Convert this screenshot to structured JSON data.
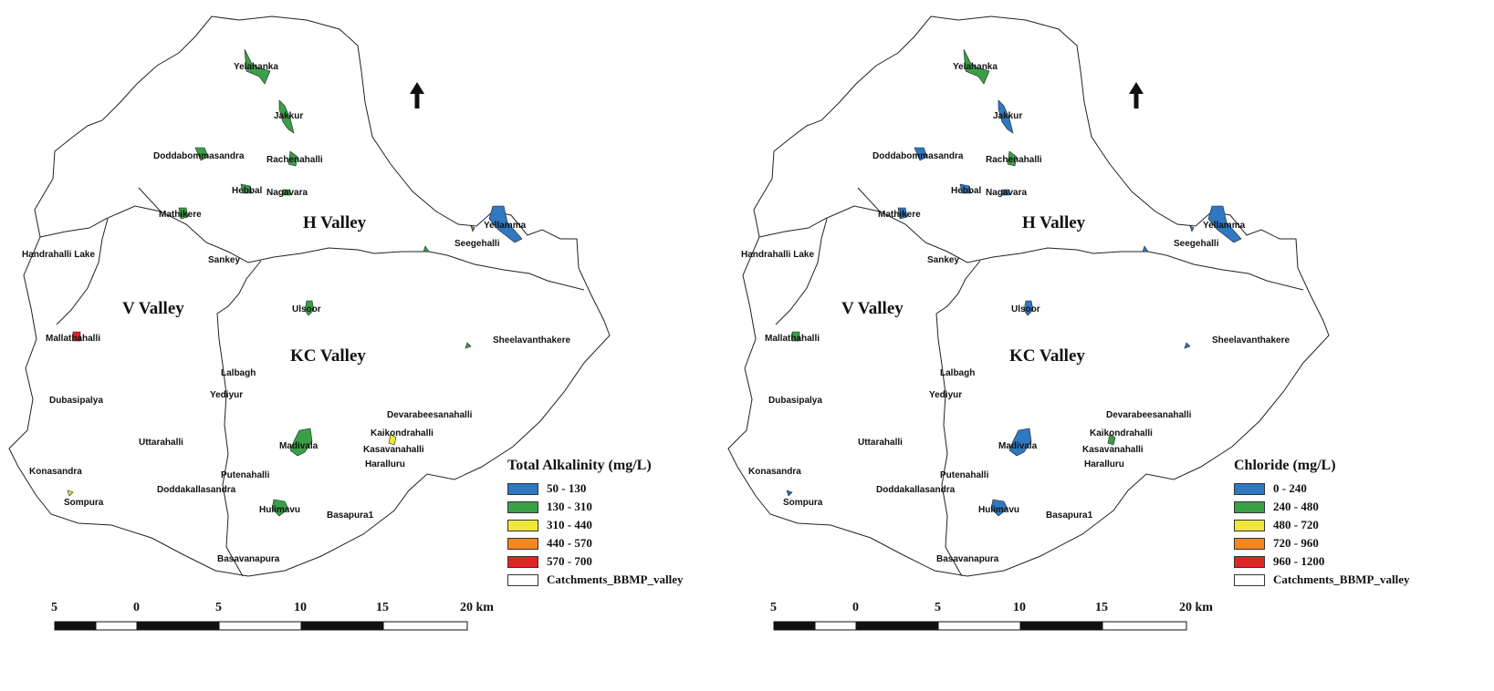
{
  "panels": [
    {
      "legend": {
        "title": "Total Alkalinity (mg/L)",
        "items": [
          {
            "label": "50 - 130",
            "color": "#2f78c2"
          },
          {
            "label": "130 - 310",
            "color": "#3aa047"
          },
          {
            "label": "310 - 440",
            "color": "#efe73a"
          },
          {
            "label": "440 - 570",
            "color": "#f5871f"
          },
          {
            "label": "570 - 700",
            "color": "#e02525"
          },
          {
            "label": "Catchments_BBMP_valley",
            "color": "#ffffff"
          }
        ]
      },
      "lake_classes": {
        "Yelahanka": 1,
        "Jakkur": 1,
        "Doddabommasandra": 1,
        "Rachenahalli": 1,
        "Hebbal": 1,
        "Nagavara": 1,
        "Mathikere": 1,
        "Yellamma": 0,
        "Seegehalli": 1,
        "Ulsoor": 1,
        "Sheelavanthakere": 1,
        "Mallathahalli": 4,
        "Madivala": 1,
        "Kasavanahalli": 2,
        "Hulimavu": 1,
        "Sompura": 2
      }
    },
    {
      "legend": {
        "title": "Chloride (mg/L)",
        "items": [
          {
            "label": "0 - 240",
            "color": "#2f78c2"
          },
          {
            "label": "240 - 480",
            "color": "#3aa047"
          },
          {
            "label": "480 - 720",
            "color": "#efe73a"
          },
          {
            "label": "720 - 960",
            "color": "#f5871f"
          },
          {
            "label": "960 - 1200",
            "color": "#e02525"
          },
          {
            "label": "Catchments_BBMP_valley",
            "color": "#ffffff"
          }
        ]
      },
      "lake_classes": {
        "Yelahanka": 1,
        "Jakkur": 0,
        "Doddabommasandra": 0,
        "Rachenahalli": 1,
        "Hebbal": 0,
        "Nagavara": 0,
        "Mathikere": 0,
        "Yellamma": 0,
        "Seegehalli": 0,
        "Ulsoor": 0,
        "Sheelavanthakere": 0,
        "Mallathahalli": 1,
        "Madivala": 0,
        "Kasavanahalli": 1,
        "Hulimavu": 0,
        "Sompura": 0
      }
    }
  ],
  "valleys": [
    "H Valley",
    "V Valley",
    "KC Valley"
  ],
  "lakes": [
    "Yelahanka",
    "Jakkur",
    "Doddabommasandra",
    "Rachenahalli",
    "Hebbal",
    "Nagavara",
    "Mathikere",
    "Yellamma",
    "Seegehalli",
    "Handrahalli Lake",
    "Sankey",
    "Ulsoor",
    "Sheelavanthakere",
    "Mallathahalli",
    "Lalbagh",
    "Yediyur",
    "Dubasipalya",
    "Devarabeesanahalli",
    "Kaikondrahalli",
    "Uttarahalli",
    "Madivala",
    "Kasavanahalli",
    "Haralluru",
    "Konasandra",
    "Putenahalli",
    "Doddakallasandra",
    "Sompura",
    "Hulimavu",
    "Basapura1",
    "Basavanapura"
  ],
  "scale_bar": {
    "ticks": [
      "5",
      "0",
      "5",
      "10",
      "15",
      "20 km"
    ]
  },
  "north_arrow": "north-arrow-icon"
}
